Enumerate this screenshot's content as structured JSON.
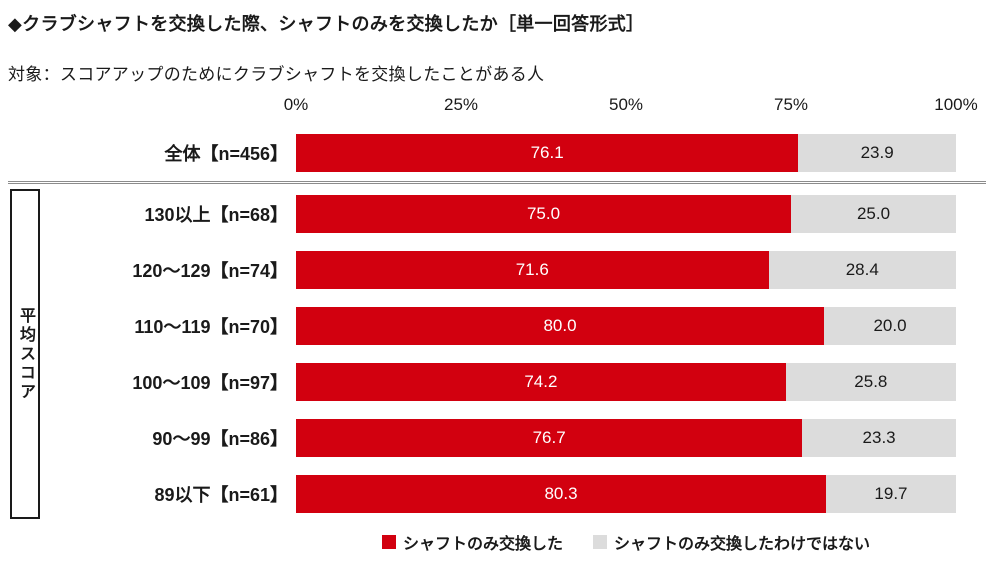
{
  "title": "◆クラブシャフトを交換した際、シャフトのみを交換したか［単一回答形式］",
  "subtitle": "対象：スコアアップのためにクラブシャフトを交換したことがある人",
  "group_label": "平均スコア",
  "axis_ticks": [
    "0%",
    "25%",
    "50%",
    "75%",
    "100%"
  ],
  "colors": {
    "series_red": "#d2000f",
    "series_gray": "#dcdcdc",
    "text_on_red": "#ffffff",
    "text_on_gray": "#1a1a1a"
  },
  "legend": [
    {
      "label": "シャフトのみ交換した",
      "color": "#d2000f"
    },
    {
      "label": "シャフトのみ交換したわけではない",
      "color": "#dcdcdc"
    }
  ],
  "chart_data": {
    "type": "bar",
    "orientation": "horizontal",
    "stacked": true,
    "xlim": [
      0,
      100
    ],
    "tick_interval": 25,
    "grid": false,
    "legend_position": "bottom",
    "categories": [
      "全体【n=456】",
      "130以上【n=68】",
      "120～129【n=74】",
      "110～119【n=70】",
      "100～109【n=97】",
      "90～99【n=86】",
      "89以下【n=61】"
    ],
    "group_spans": [
      {
        "label": "平均スコア",
        "from_index": 1,
        "to_index": 6
      }
    ],
    "series": [
      {
        "name": "シャフトのみ交換した",
        "color": "#d2000f",
        "values": [
          76.1,
          75.0,
          71.6,
          80.0,
          74.2,
          76.7,
          80.3
        ]
      },
      {
        "name": "シャフトのみ交換したわけではない",
        "color": "#dcdcdc",
        "values": [
          23.9,
          25.0,
          28.4,
          20.0,
          25.8,
          23.3,
          19.7
        ]
      }
    ],
    "value_decimals": 1
  }
}
